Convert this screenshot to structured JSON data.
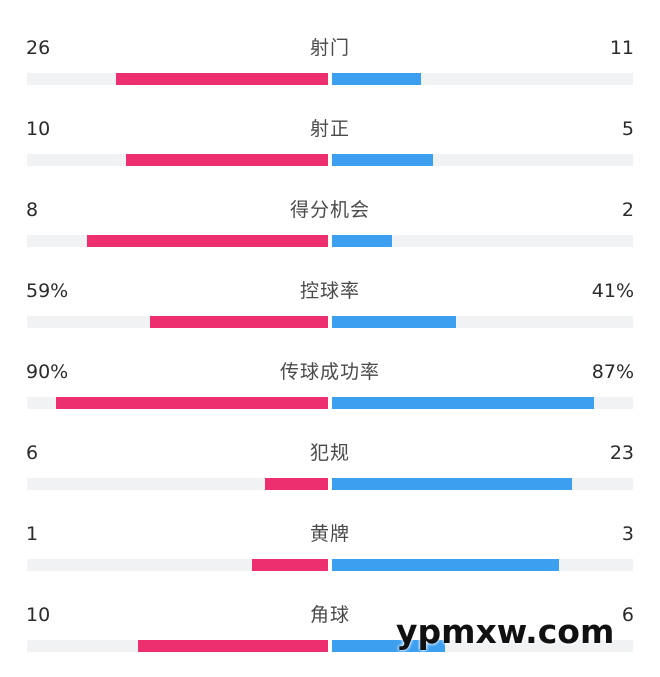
{
  "stats": [
    {
      "label": "射门",
      "left": "26",
      "right": "11",
      "left_fill": 0.705,
      "right_fill": 0.297
    },
    {
      "label": "射正",
      "left": "10",
      "right": "5",
      "left_fill": 0.671,
      "right_fill": 0.336
    },
    {
      "label": "得分机会",
      "left": "8",
      "right": "2",
      "left_fill": 0.801,
      "right_fill": 0.199
    },
    {
      "label": "控球率",
      "left": "59%",
      "right": "41%",
      "left_fill": 0.591,
      "right_fill": 0.412
    },
    {
      "label": "传球成功率",
      "left": "90%",
      "right": "87%",
      "left_fill": 0.904,
      "right_fill": 0.87
    },
    {
      "label": "犯规",
      "left": "6",
      "right": "23",
      "left_fill": 0.209,
      "right_fill": 0.797
    },
    {
      "label": "黄牌",
      "left": "1",
      "right": "3",
      "left_fill": 0.252,
      "right_fill": 0.754
    },
    {
      "label": "角球",
      "left": "10",
      "right": "6",
      "left_fill": 0.631,
      "right_fill": 0.375
    }
  ],
  "colors": {
    "left_team": "#ee2f6f",
    "right_team": "#3d9ff0",
    "track": "#f1f2f4"
  },
  "watermark": "ypmxw.com"
}
